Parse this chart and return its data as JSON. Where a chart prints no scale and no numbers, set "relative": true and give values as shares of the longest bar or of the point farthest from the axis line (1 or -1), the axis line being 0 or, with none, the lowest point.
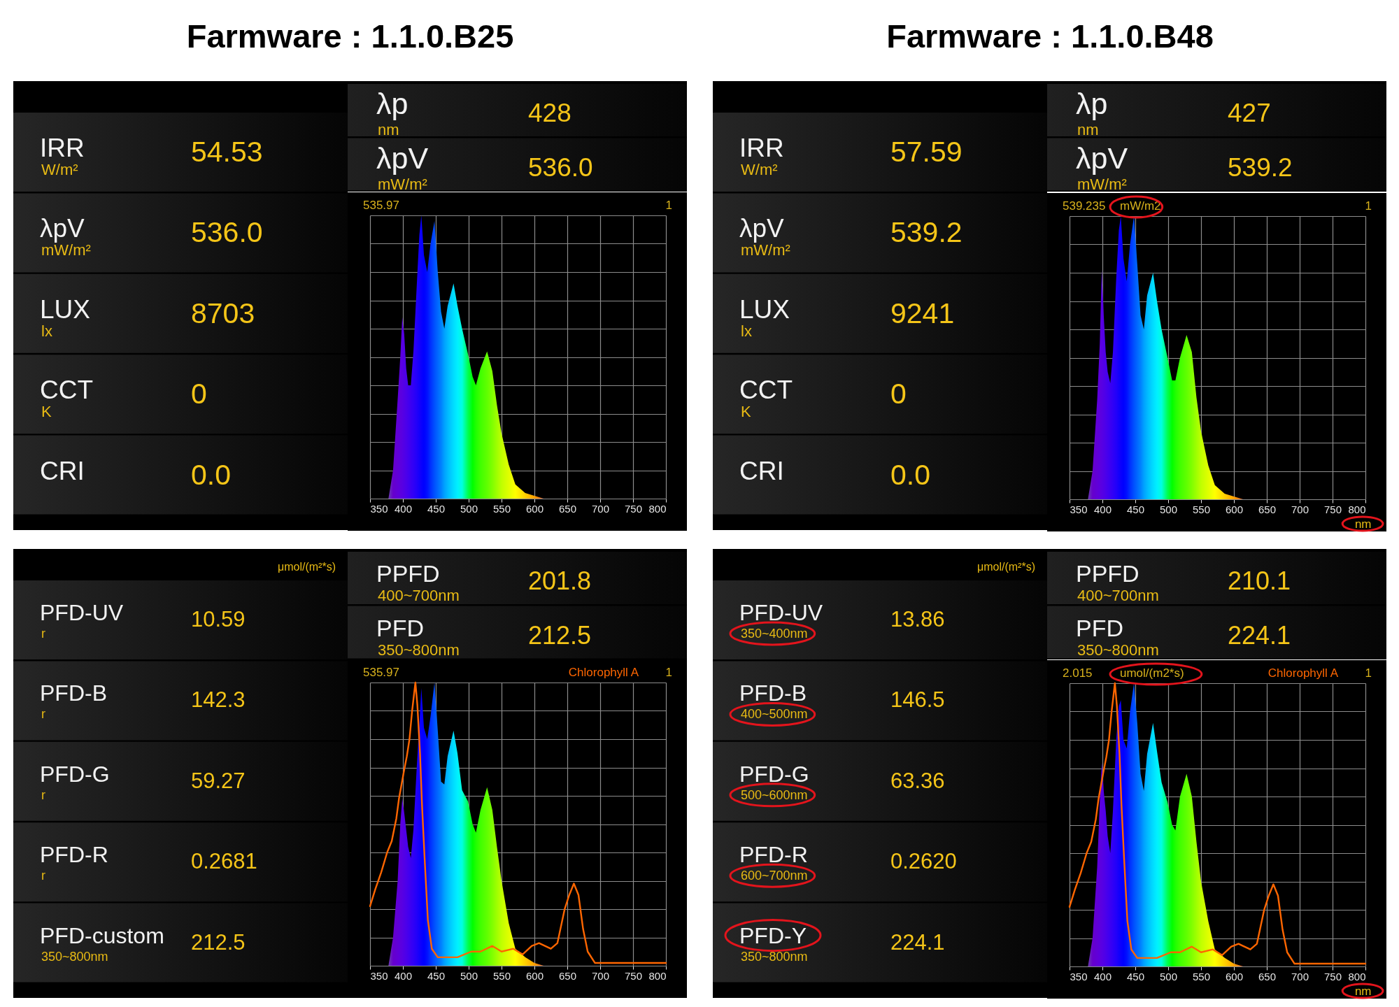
{
  "chart_data": [
    {
      "type": "other",
      "title": "Farmware : 1.1.0.B25",
      "annotations": [
        "IRR\nW/m²",
        "54.53",
        "λpV\nmW/m²",
        "536.0",
        "LUX\nlx",
        "8703",
        "CCT\nK",
        "0",
        "CRI",
        "0.0"
      ]
    },
    {
      "type": "other",
      "annotations": [
        "λp\nnm",
        "428",
        "λpV\nmW/m²",
        "536.0"
      ]
    },
    {
      "type": "area",
      "relative": true,
      "grid": true,
      "xlim": [
        350,
        800
      ],
      "xticks": [
        350,
        400,
        450,
        500,
        550,
        600,
        650,
        700,
        750,
        800
      ],
      "annotations": [
        "535.97",
        "1"
      ],
      "x": [
        350,
        378,
        385,
        392,
        396,
        399,
        402,
        405,
        408,
        412,
        416,
        421,
        425,
        428,
        432,
        437,
        442,
        448,
        453,
        458,
        463,
        468,
        477,
        483,
        490,
        499,
        506,
        511,
        518,
        528,
        536,
        543,
        550,
        561,
        571,
        586,
        600,
        614,
        700,
        800
      ],
      "series": [
        {
          "colors": [
            "#6a3cb0",
            "#6a3cb0",
            "#6600cc",
            "#6000d8",
            "#5c00de",
            "#5800e2",
            "#5200e6",
            "#4c00ea",
            "#4400ee",
            "#3a00f2",
            "#3000f6",
            "#2200fa",
            "#1400fc",
            "#0a00fe",
            "#0000ff",
            "#0010ff",
            "#0030ff",
            "#0050ff",
            "#0068ff",
            "#0080ff",
            "#00a0ff",
            "#00b8ff",
            "#00dcff",
            "#00f0ff",
            "#00ffe0",
            "#00ff50",
            "#00ff00",
            "#20ff00",
            "#40ff00",
            "#60ff00",
            "#80ff00",
            "#a0ff00",
            "#c0ff00",
            "#e0ff00",
            "#ffff00",
            "#ffd000",
            "#ffa000",
            "#e06030",
            "#d03030",
            "#c83232"
          ],
          "values": [
            0,
            0,
            0.1,
            0.35,
            0.5,
            0.64,
            0.58,
            0.46,
            0.4,
            0.4,
            0.52,
            0.75,
            0.93,
            1,
            0.86,
            0.8,
            0.9,
            0.98,
            0.8,
            0.66,
            0.6,
            0.68,
            0.76,
            0.68,
            0.6,
            0.51,
            0.43,
            0.4,
            0.46,
            0.52,
            0.45,
            0.33,
            0.23,
            0.12,
            0.05,
            0.02,
            0.01,
            0,
            0,
            0
          ]
        }
      ]
    },
    {
      "type": "other",
      "title": "Farmware : 1.1.0.B48",
      "annotations": [
        "IRR\nW/m²",
        "57.59",
        "λpV\nmW/m²",
        "539.2",
        "LUX\nlx",
        "9241",
        "CCT\nK",
        "0",
        "CRI",
        "0.0"
      ]
    },
    {
      "type": "other",
      "annotations": [
        "λp\nnm",
        "427",
        "λpV\nmW/m²",
        "539.2"
      ]
    },
    {
      "type": "area",
      "relative": true,
      "grid": true,
      "xlim": [
        350,
        800
      ],
      "xticks": [
        350,
        400,
        450,
        500,
        550,
        600,
        650,
        700,
        750,
        800
      ],
      "xlabel": "nm",
      "annotations": [
        "539.235",
        "mW/m2",
        "1"
      ],
      "x": [
        350,
        378,
        385,
        392,
        396,
        399,
        402,
        405,
        408,
        412,
        416,
        421,
        425,
        428,
        432,
        437,
        442,
        448,
        453,
        458,
        463,
        468,
        477,
        483,
        490,
        499,
        506,
        511,
        518,
        528,
        536,
        543,
        550,
        561,
        571,
        586,
        600,
        614,
        700,
        800
      ],
      "series": [
        {
          "colors": [
            "#6a3cb0",
            "#6a3cb0",
            "#6600cc",
            "#6000d8",
            "#5c00de",
            "#5800e2",
            "#5200e6",
            "#4c00ea",
            "#4400ee",
            "#3a00f2",
            "#3000f6",
            "#2200fa",
            "#1400fc",
            "#0a00fe",
            "#0000ff",
            "#0010ff",
            "#0030ff",
            "#0050ff",
            "#0068ff",
            "#0080ff",
            "#00a0ff",
            "#00b8ff",
            "#00dcff",
            "#00f0ff",
            "#00ffe0",
            "#00ff50",
            "#00ff00",
            "#20ff00",
            "#40ff00",
            "#60ff00",
            "#80ff00",
            "#a0ff00",
            "#c0ff00",
            "#e0ff00",
            "#ffff00",
            "#ffd000",
            "#ffa000",
            "#e06030",
            "#d03030",
            "#c83232"
          ],
          "values": [
            0,
            0,
            0.1,
            0.35,
            0.55,
            0.81,
            0.65,
            0.52,
            0.45,
            0.41,
            0.52,
            0.78,
            0.95,
            1,
            0.85,
            0.77,
            0.9,
            1,
            0.83,
            0.65,
            0.6,
            0.72,
            0.8,
            0.7,
            0.6,
            0.5,
            0.42,
            0.42,
            0.5,
            0.58,
            0.52,
            0.36,
            0.24,
            0.12,
            0.05,
            0.02,
            0.01,
            0,
            0,
            0
          ]
        }
      ]
    },
    {
      "type": "other",
      "annotations": [
        "μmol/(m²*s)",
        "PFD-UV\nr",
        "10.59",
        "PFD-B\nr",
        "142.3",
        "PFD-G\nr",
        "59.27",
        "PFD-R\nr",
        "0.2681",
        "PFD-custom\n350~800nm",
        "212.5"
      ]
    },
    {
      "type": "other",
      "annotations": [
        "PPFD\n400~700nm",
        "201.8",
        "PFD\n350~800nm",
        "212.5"
      ]
    },
    {
      "type": "area",
      "relative": true,
      "grid": true,
      "xlim": [
        350,
        800
      ],
      "xticks": [
        350,
        400,
        450,
        500,
        550,
        600,
        650,
        700,
        750,
        800
      ],
      "annotations": [
        "535.97",
        "1"
      ],
      "x": [
        350,
        378,
        385,
        392,
        396,
        399,
        402,
        405,
        408,
        412,
        416,
        421,
        425,
        428,
        432,
        437,
        442,
        448,
        453,
        458,
        463,
        468,
        477,
        483,
        490,
        499,
        506,
        511,
        518,
        528,
        536,
        543,
        550,
        561,
        571,
        586,
        600,
        614,
        700,
        800
      ],
      "series": [
        {
          "colors": [
            "#6a3cb0",
            "#6a3cb0",
            "#6600cc",
            "#6000d8",
            "#5c00de",
            "#5800e2",
            "#5200e6",
            "#4c00ea",
            "#4400ee",
            "#3a00f2",
            "#3000f6",
            "#2200fa",
            "#1400fc",
            "#0a00fe",
            "#0000ff",
            "#0010ff",
            "#0030ff",
            "#0050ff",
            "#0068ff",
            "#0080ff",
            "#00a0ff",
            "#00b8ff",
            "#00dcff",
            "#00f0ff",
            "#00ffe0",
            "#00ff50",
            "#00ff00",
            "#20ff00",
            "#40ff00",
            "#60ff00",
            "#80ff00",
            "#a0ff00",
            "#c0ff00",
            "#e0ff00",
            "#ffff00",
            "#ffd000",
            "#ffa000",
            "#e06030",
            "#d03030",
            "#c83232"
          ],
          "values": [
            0,
            0,
            0.1,
            0.3,
            0.5,
            0.59,
            0.54,
            0.48,
            0.42,
            0.38,
            0.48,
            0.7,
            0.85,
            0.98,
            0.84,
            0.8,
            0.88,
            1,
            0.83,
            0.65,
            0.64,
            0.74,
            0.83,
            0.75,
            0.62,
            0.58,
            0.5,
            0.47,
            0.55,
            0.63,
            0.55,
            0.42,
            0.3,
            0.15,
            0.06,
            0.03,
            0.01,
            0,
            0,
            0
          ]
        },
        {
          "name": "Chlorophyll A",
          "type": "line",
          "color": "#ff6600",
          "x": [
            350,
            358,
            367,
            376,
            383,
            390,
            394,
            401,
            406,
            410,
            414,
            419,
            422,
            426,
            429,
            433,
            438,
            444,
            453,
            461,
            483,
            504,
            518,
            536,
            550,
            568,
            582,
            596,
            607,
            625,
            635,
            646,
            653,
            660,
            667,
            674,
            681,
            692,
            703,
            800
          ],
          "values": [
            0.21,
            0.27,
            0.33,
            0.4,
            0.44,
            0.52,
            0.59,
            0.68,
            0.74,
            0.8,
            0.9,
            1,
            0.92,
            0.75,
            0.57,
            0.38,
            0.16,
            0.06,
            0.03,
            0.03,
            0.03,
            0.05,
            0.05,
            0.07,
            0.05,
            0.06,
            0.04,
            0.07,
            0.08,
            0.06,
            0.08,
            0.2,
            0.25,
            0.29,
            0.25,
            0.13,
            0.05,
            0.01,
            0.01,
            0.01
          ]
        }
      ]
    },
    {
      "type": "other",
      "annotations": [
        "μmol/(m²*s)",
        "PFD-UV\n350~400nm",
        "13.86",
        "PFD-B\n400~500nm",
        "146.5",
        "PFD-G\n500~600nm",
        "63.36",
        "PFD-R\n600~700nm",
        "0.2620",
        "PFD-Y\n350~800nm",
        "224.1"
      ]
    },
    {
      "type": "other",
      "annotations": [
        "PPFD\n400~700nm",
        "210.1",
        "PFD\n350~800nm",
        "224.1"
      ]
    },
    {
      "type": "area",
      "relative": true,
      "grid": true,
      "xlim": [
        350,
        800
      ],
      "xticks": [
        350,
        400,
        450,
        500,
        550,
        600,
        650,
        700,
        750,
        800
      ],
      "xlabel": "nm",
      "annotations": [
        "2.015",
        "umol/(m2*s)",
        "1"
      ],
      "x": [
        350,
        378,
        385,
        392,
        396,
        399,
        402,
        405,
        408,
        412,
        416,
        421,
        425,
        428,
        432,
        437,
        442,
        448,
        453,
        458,
        463,
        468,
        477,
        483,
        490,
        499,
        506,
        511,
        518,
        528,
        536,
        543,
        550,
        561,
        571,
        586,
        600,
        614,
        700,
        800
      ],
      "series": [
        {
          "colors": [
            "#6a3cb0",
            "#6a3cb0",
            "#6600cc",
            "#6000d8",
            "#5c00de",
            "#5800e2",
            "#5200e6",
            "#4c00ea",
            "#4400ee",
            "#3a00f2",
            "#3000f6",
            "#2200fa",
            "#1400fc",
            "#0a00fe",
            "#0000ff",
            "#0010ff",
            "#0030ff",
            "#0050ff",
            "#0068ff",
            "#0080ff",
            "#00a0ff",
            "#00b8ff",
            "#00dcff",
            "#00f0ff",
            "#00ffe0",
            "#00ff50",
            "#00ff00",
            "#20ff00",
            "#40ff00",
            "#60ff00",
            "#80ff00",
            "#a0ff00",
            "#c0ff00",
            "#e0ff00",
            "#ffff00",
            "#ffd000",
            "#ffa000",
            "#e06030",
            "#d03030",
            "#c83232"
          ],
          "values": [
            0,
            0,
            0.1,
            0.35,
            0.58,
            0.72,
            0.62,
            0.55,
            0.46,
            0.4,
            0.55,
            0.8,
            0.92,
            0.94,
            0.8,
            0.77,
            0.9,
            1,
            0.86,
            0.68,
            0.62,
            0.75,
            0.86,
            0.76,
            0.65,
            0.58,
            0.5,
            0.48,
            0.6,
            0.68,
            0.6,
            0.44,
            0.3,
            0.16,
            0.06,
            0.03,
            0.01,
            0,
            0,
            0
          ]
        },
        {
          "name": "Chlorophyll A",
          "type": "line",
          "color": "#ff6600",
          "x": [
            350,
            358,
            367,
            376,
            383,
            390,
            394,
            401,
            406,
            410,
            414,
            419,
            422,
            426,
            429,
            433,
            438,
            444,
            453,
            461,
            483,
            504,
            518,
            536,
            550,
            568,
            582,
            596,
            607,
            625,
            635,
            646,
            653,
            660,
            667,
            674,
            681,
            692,
            703,
            800
          ],
          "values": [
            0.21,
            0.27,
            0.33,
            0.4,
            0.44,
            0.52,
            0.59,
            0.68,
            0.74,
            0.8,
            0.9,
            1,
            0.92,
            0.75,
            0.57,
            0.38,
            0.16,
            0.06,
            0.03,
            0.03,
            0.03,
            0.05,
            0.05,
            0.07,
            0.05,
            0.06,
            0.04,
            0.07,
            0.08,
            0.06,
            0.08,
            0.2,
            0.25,
            0.29,
            0.25,
            0.13,
            0.05,
            0.01,
            0.01,
            0.01
          ]
        }
      ]
    }
  ]
}
